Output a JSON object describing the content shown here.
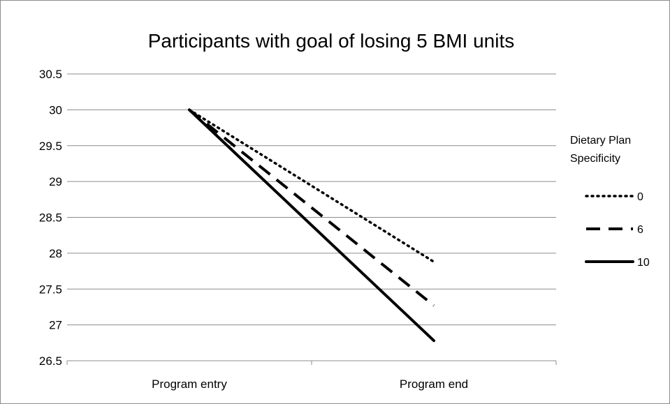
{
  "chart_data": {
    "type": "line",
    "title": "Participants with goal of losing 5 BMI units",
    "categories": [
      "Program entry",
      "Program end"
    ],
    "ylim": [
      26.5,
      30.5
    ],
    "yticks": [
      "30.5",
      "30",
      "29.5",
      "29",
      "28.5",
      "28",
      "27.5",
      "27",
      "26.5"
    ],
    "grid": true,
    "legend": {
      "title_lines": [
        "Dietary Plan",
        "Specificity"
      ],
      "placement": "right"
    },
    "series": [
      {
        "name": "0",
        "values": [
          30.0,
          27.88
        ],
        "style": "dotted"
      },
      {
        "name": "6",
        "values": [
          30.0,
          27.27
        ],
        "style": "dashed"
      },
      {
        "name": "10",
        "values": [
          30.0,
          26.78
        ],
        "style": "solid"
      }
    ]
  }
}
